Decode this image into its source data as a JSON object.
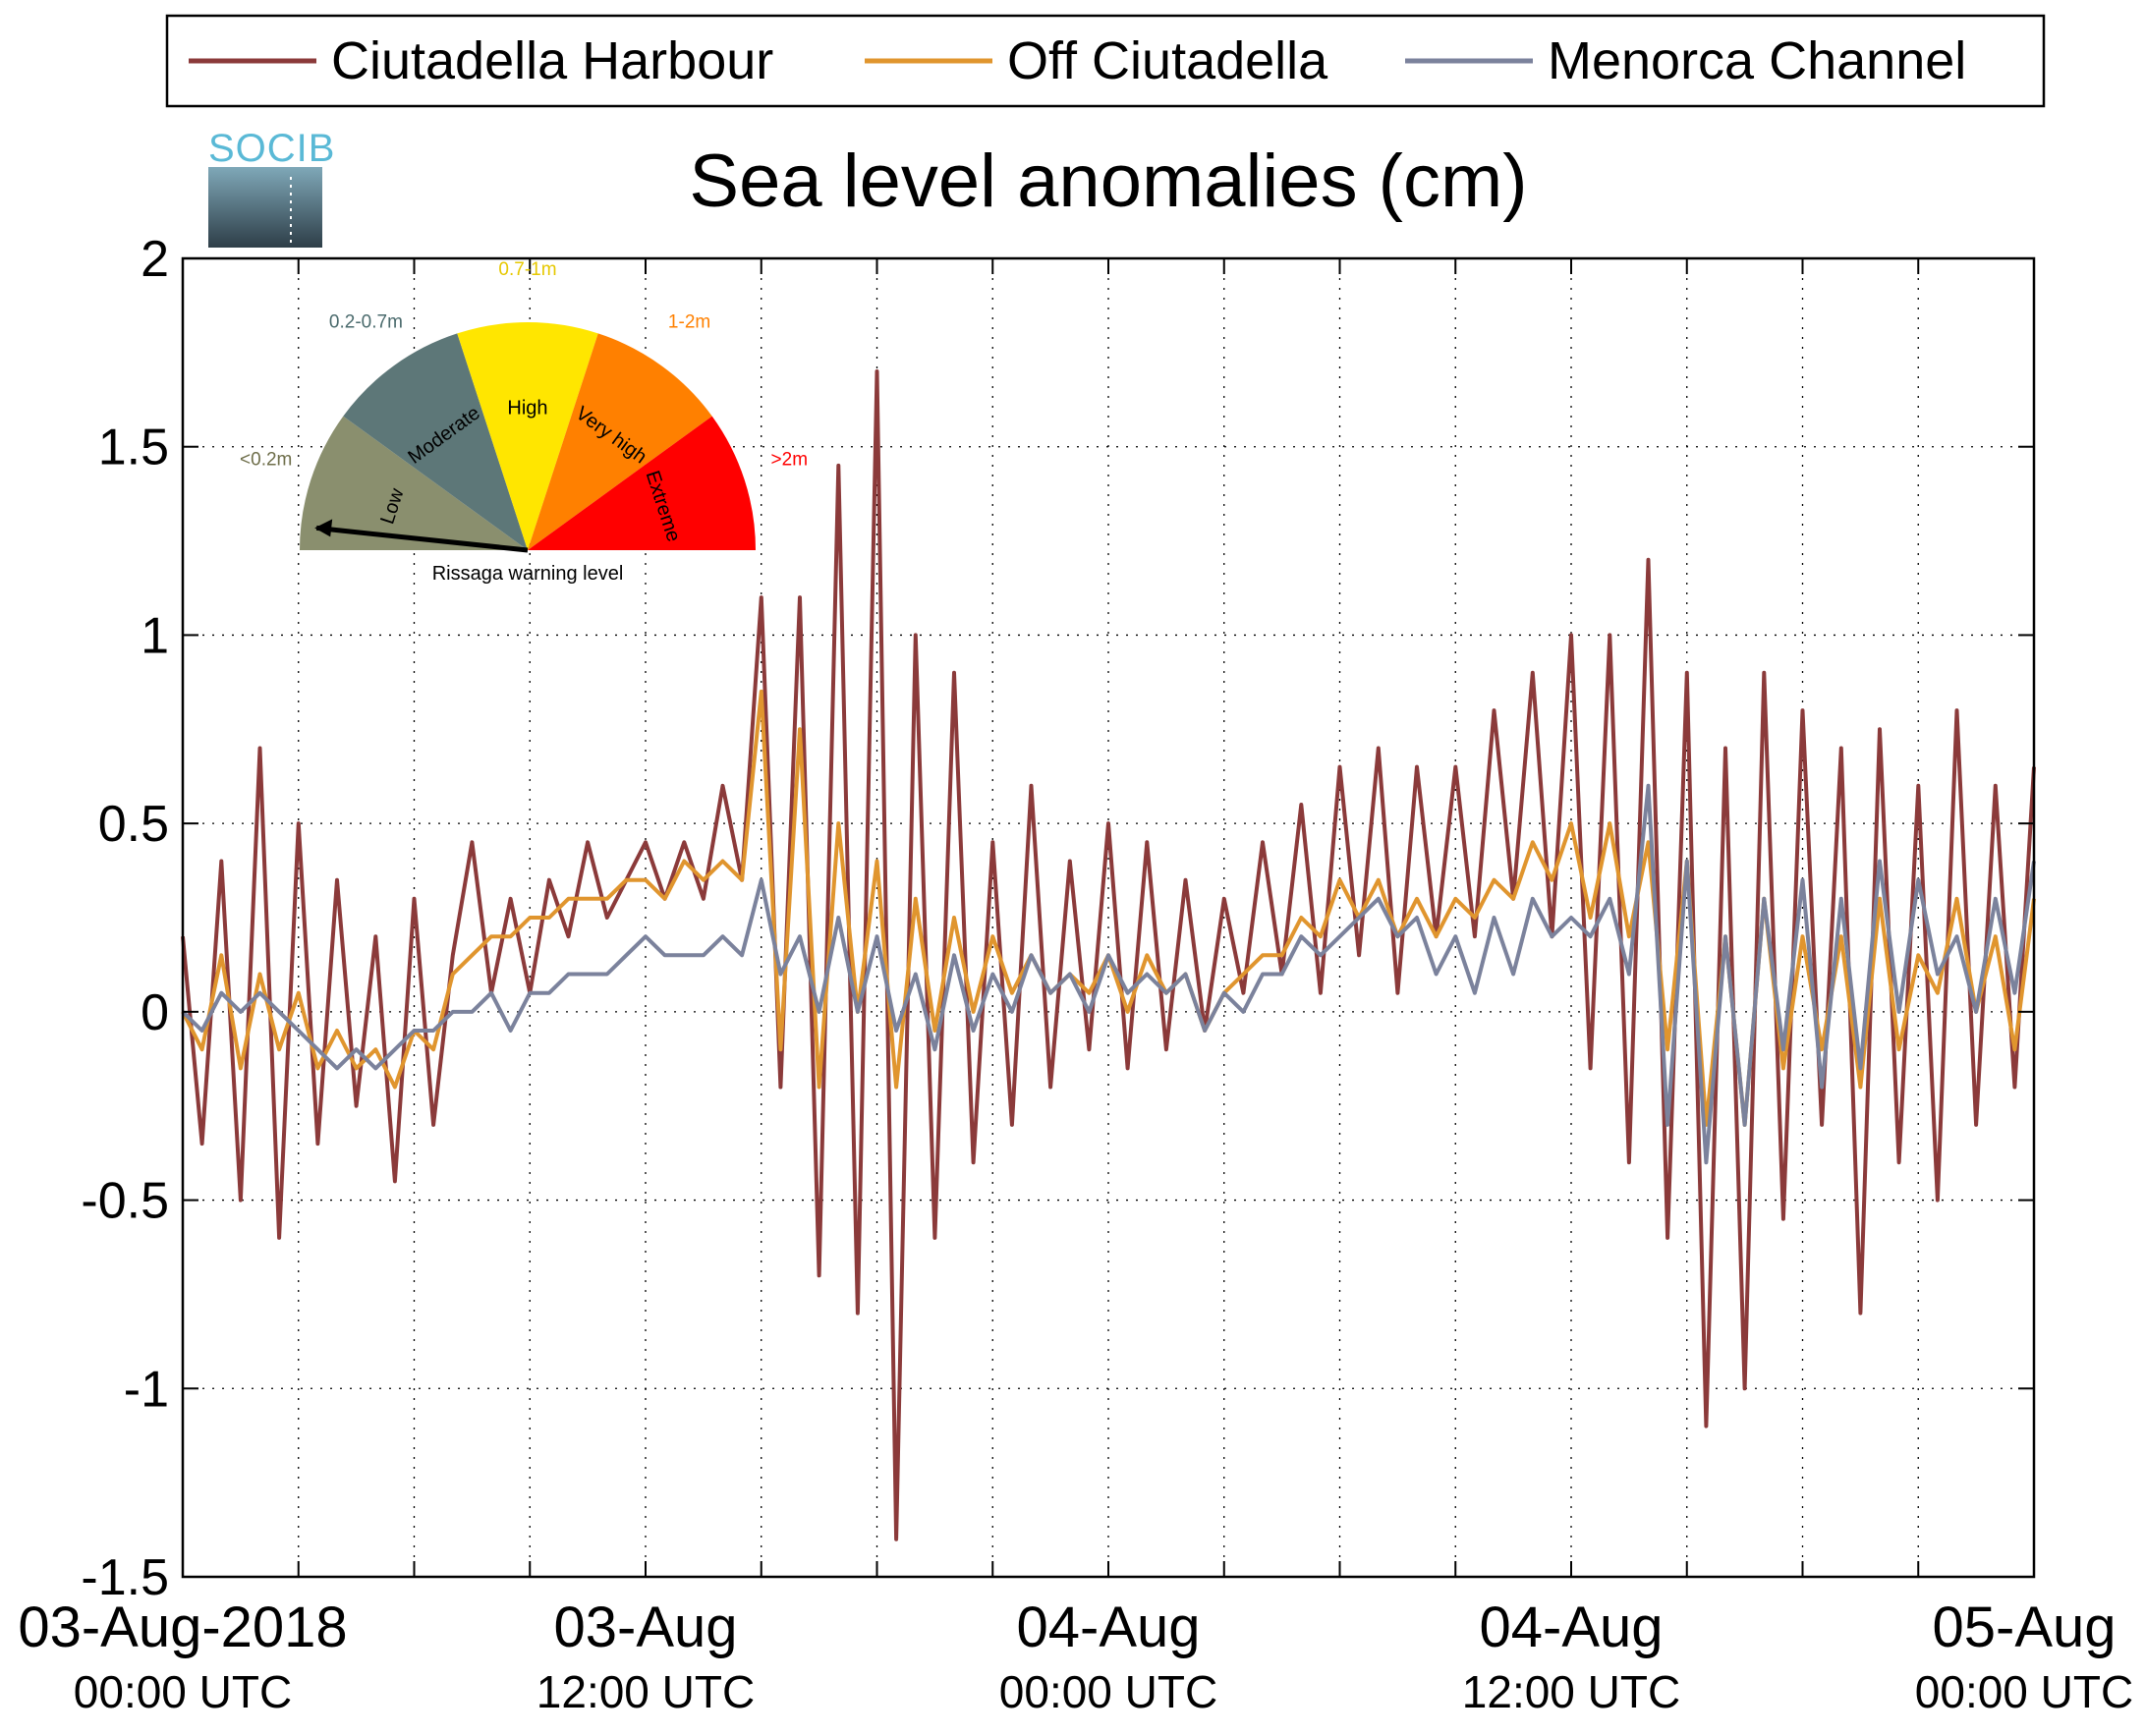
{
  "chart_data": {
    "type": "line",
    "title": "Sea level anomalies (cm)",
    "xlabel": "",
    "ylabel": "",
    "ylim": [
      -1.5,
      2
    ],
    "xlim_hours": [
      0,
      48
    ],
    "grid": true,
    "legend_position": "top",
    "yticks": [
      {
        "value": 2,
        "label": "2"
      },
      {
        "value": 1.5,
        "label": "1.5"
      },
      {
        "value": 1,
        "label": "1"
      },
      {
        "value": 0.5,
        "label": "0.5"
      },
      {
        "value": 0,
        "label": "0"
      },
      {
        "value": -0.5,
        "label": "-0.5"
      },
      {
        "value": -1,
        "label": "-1"
      },
      {
        "value": -1.5,
        "label": "-1.5"
      }
    ],
    "xticks": [
      {
        "hour": 0,
        "line1": "03-Aug-2018",
        "line2": "00:00 UTC"
      },
      {
        "hour": 12,
        "line1": "03-Aug",
        "line2": "12:00 UTC"
      },
      {
        "hour": 24,
        "line1": "04-Aug",
        "line2": "00:00 UTC"
      },
      {
        "hour": 36,
        "line1": "04-Aug",
        "line2": "12:00 UTC"
      },
      {
        "hour": 48,
        "line1": "05-Aug",
        "line2": "00:00 UTC"
      }
    ],
    "series": [
      {
        "name": "Ciutadella Harbour",
        "color": "#8b3a3a",
        "x_hours": [
          0,
          0.5,
          1,
          1.5,
          2,
          2.5,
          3,
          3.5,
          4,
          4.5,
          5,
          5.5,
          6,
          6.5,
          7,
          7.5,
          8,
          8.5,
          9,
          9.5,
          10,
          10.5,
          11,
          11.5,
          12,
          12.5,
          13,
          13.5,
          14,
          14.5,
          15,
          15.5,
          16,
          16.5,
          17,
          17.5,
          18,
          18.5,
          19,
          19.5,
          20,
          20.5,
          21,
          21.5,
          22,
          22.5,
          23,
          23.5,
          24,
          24.5,
          25,
          25.5,
          26,
          26.5,
          27,
          27.5,
          28,
          28.5,
          29,
          29.5,
          30,
          30.5,
          31,
          31.5,
          32,
          32.5,
          33,
          33.5,
          34,
          34.5,
          35,
          35.5,
          36,
          36.5,
          37,
          37.5,
          38,
          38.5,
          39,
          39.5,
          40,
          40.5,
          41,
          41.5,
          42,
          42.5,
          43,
          43.5,
          44,
          44.5,
          45,
          45.5,
          46,
          46.5,
          47,
          47.5,
          48
        ],
        "values": [
          0.2,
          -0.35,
          0.4,
          -0.5,
          0.7,
          -0.6,
          0.5,
          -0.35,
          0.35,
          -0.25,
          0.2,
          -0.45,
          0.3,
          -0.3,
          0.15,
          0.45,
          0.05,
          0.3,
          0.05,
          0.35,
          0.2,
          0.45,
          0.25,
          0.35,
          0.45,
          0.3,
          0.45,
          0.3,
          0.6,
          0.35,
          1.1,
          -0.2,
          1.1,
          -0.7,
          1.45,
          -0.8,
          1.7,
          -1.4,
          1.0,
          -0.6,
          0.9,
          -0.4,
          0.45,
          -0.3,
          0.6,
          -0.2,
          0.4,
          -0.1,
          0.5,
          -0.15,
          0.45,
          -0.1,
          0.35,
          -0.05,
          0.3,
          0.05,
          0.45,
          0.1,
          0.55,
          0.05,
          0.65,
          0.15,
          0.7,
          0.05,
          0.65,
          0.2,
          0.65,
          0.2,
          0.8,
          0.3,
          0.9,
          0.2,
          1.0,
          -0.15,
          1.0,
          -0.4,
          1.2,
          -0.6,
          0.9,
          -1.1,
          0.7,
          -1.0,
          0.9,
          -0.55,
          0.8,
          -0.3,
          0.7,
          -0.8,
          0.75,
          -0.4,
          0.6,
          -0.5,
          0.8,
          -0.3,
          0.6,
          -0.2,
          0.65
        ]
      },
      {
        "name": "Off Ciutadella",
        "color": "#e0952e",
        "x_hours": [
          0,
          0.5,
          1,
          1.5,
          2,
          2.5,
          3,
          3.5,
          4,
          4.5,
          5,
          5.5,
          6,
          6.5,
          7,
          7.5,
          8,
          8.5,
          9,
          9.5,
          10,
          10.5,
          11,
          11.5,
          12,
          12.5,
          13,
          13.5,
          14,
          14.5,
          15,
          15.5,
          16,
          16.5,
          17,
          17.5,
          18,
          18.5,
          19,
          19.5,
          20,
          20.5,
          21,
          21.5,
          22,
          22.5,
          23,
          23.5,
          24,
          24.5,
          25,
          25.5,
          26,
          26.5,
          27,
          27.5,
          28,
          28.5,
          29,
          29.5,
          30,
          30.5,
          31,
          31.5,
          32,
          32.5,
          33,
          33.5,
          34,
          34.5,
          35,
          35.5,
          36,
          36.5,
          37,
          37.5,
          38,
          38.5,
          39,
          39.5,
          40,
          40.5,
          41,
          41.5,
          42,
          42.5,
          43,
          43.5,
          44,
          44.5,
          45,
          45.5,
          46,
          46.5,
          47,
          47.5,
          48
        ],
        "values": [
          0.0,
          -0.1,
          0.15,
          -0.15,
          0.1,
          -0.1,
          0.05,
          -0.15,
          -0.05,
          -0.15,
          -0.1,
          -0.2,
          -0.05,
          -0.1,
          0.1,
          0.15,
          0.2,
          0.2,
          0.25,
          0.25,
          0.3,
          0.3,
          0.3,
          0.35,
          0.35,
          0.3,
          0.4,
          0.35,
          0.4,
          0.35,
          0.85,
          -0.1,
          0.75,
          -0.2,
          0.5,
          0.0,
          0.4,
          -0.2,
          0.3,
          -0.05,
          0.25,
          0.0,
          0.2,
          0.05,
          0.15,
          0.05,
          0.1,
          0.05,
          0.15,
          0.0,
          0.15,
          0.05,
          0.1,
          -0.05,
          0.05,
          0.1,
          0.15,
          0.15,
          0.25,
          0.2,
          0.35,
          0.25,
          0.35,
          0.2,
          0.3,
          0.2,
          0.3,
          0.25,
          0.35,
          0.3,
          0.45,
          0.35,
          0.5,
          0.25,
          0.5,
          0.2,
          0.45,
          -0.1,
          0.4,
          -0.3,
          0.2,
          -0.3,
          0.3,
          -0.15,
          0.2,
          -0.1,
          0.2,
          -0.2,
          0.3,
          -0.1,
          0.15,
          0.05,
          0.3,
          0.0,
          0.2,
          -0.1,
          0.3
        ]
      },
      {
        "name": "Menorca Channel",
        "color": "#7b829c",
        "x_hours": [
          0,
          0.5,
          1,
          1.5,
          2,
          2.5,
          3,
          3.5,
          4,
          4.5,
          5,
          5.5,
          6,
          6.5,
          7,
          7.5,
          8,
          8.5,
          9,
          9.5,
          10,
          10.5,
          11,
          11.5,
          12,
          12.5,
          13,
          13.5,
          14,
          14.5,
          15,
          15.5,
          16,
          16.5,
          17,
          17.5,
          18,
          18.5,
          19,
          19.5,
          20,
          20.5,
          21,
          21.5,
          22,
          22.5,
          23,
          23.5,
          24,
          24.5,
          25,
          25.5,
          26,
          26.5,
          27,
          27.5,
          28,
          28.5,
          29,
          29.5,
          30,
          30.5,
          31,
          31.5,
          32,
          32.5,
          33,
          33.5,
          34,
          34.5,
          35,
          35.5,
          36,
          36.5,
          37,
          37.5,
          38,
          38.5,
          39,
          39.5,
          40,
          40.5,
          41,
          41.5,
          42,
          42.5,
          43,
          43.5,
          44,
          44.5,
          45,
          45.5,
          46,
          46.5,
          47,
          47.5,
          48
        ],
        "values": [
          0.0,
          -0.05,
          0.05,
          0.0,
          0.05,
          0.0,
          -0.05,
          -0.1,
          -0.15,
          -0.1,
          -0.15,
          -0.1,
          -0.05,
          -0.05,
          0.0,
          0.0,
          0.05,
          -0.05,
          0.05,
          0.05,
          0.1,
          0.1,
          0.1,
          0.15,
          0.2,
          0.15,
          0.15,
          0.15,
          0.2,
          0.15,
          0.35,
          0.1,
          0.2,
          0.0,
          0.25,
          0.0,
          0.2,
          -0.05,
          0.1,
          -0.1,
          0.15,
          -0.05,
          0.1,
          0.0,
          0.15,
          0.05,
          0.1,
          0.0,
          0.15,
          0.05,
          0.1,
          0.05,
          0.1,
          -0.05,
          0.05,
          0.0,
          0.1,
          0.1,
          0.2,
          0.15,
          0.2,
          0.25,
          0.3,
          0.2,
          0.25,
          0.1,
          0.2,
          0.05,
          0.25,
          0.1,
          0.3,
          0.2,
          0.25,
          0.2,
          0.3,
          0.1,
          0.6,
          -0.3,
          0.4,
          -0.4,
          0.2,
          -0.3,
          0.3,
          -0.1,
          0.35,
          -0.2,
          0.3,
          -0.15,
          0.4,
          0.0,
          0.35,
          0.1,
          0.2,
          0.0,
          0.3,
          0.05,
          0.4
        ]
      }
    ]
  },
  "gauge": {
    "caption": "Rissaga warning level",
    "segments": [
      {
        "label": "Low",
        "range_label": "<0.2m",
        "color": "#8a8f6e",
        "range_color": "#6e6e4a"
      },
      {
        "label": "Moderate",
        "range_label": "0.2-0.7m",
        "color": "#5d7778",
        "range_color": "#4a6a6c"
      },
      {
        "label": "High",
        "range_label": "0.7-1m",
        "color": "#ffe600",
        "range_color": "#e6c800"
      },
      {
        "label": "Very high",
        "range_label": "1-2m",
        "color": "#ff8000",
        "range_color": "#ff8000"
      },
      {
        "label": "Extreme",
        "range_label": ">2m",
        "color": "#ff0000",
        "range_color": "#ff0000"
      }
    ],
    "active_level": "Low"
  },
  "logo": {
    "text": "SOCIB"
  }
}
